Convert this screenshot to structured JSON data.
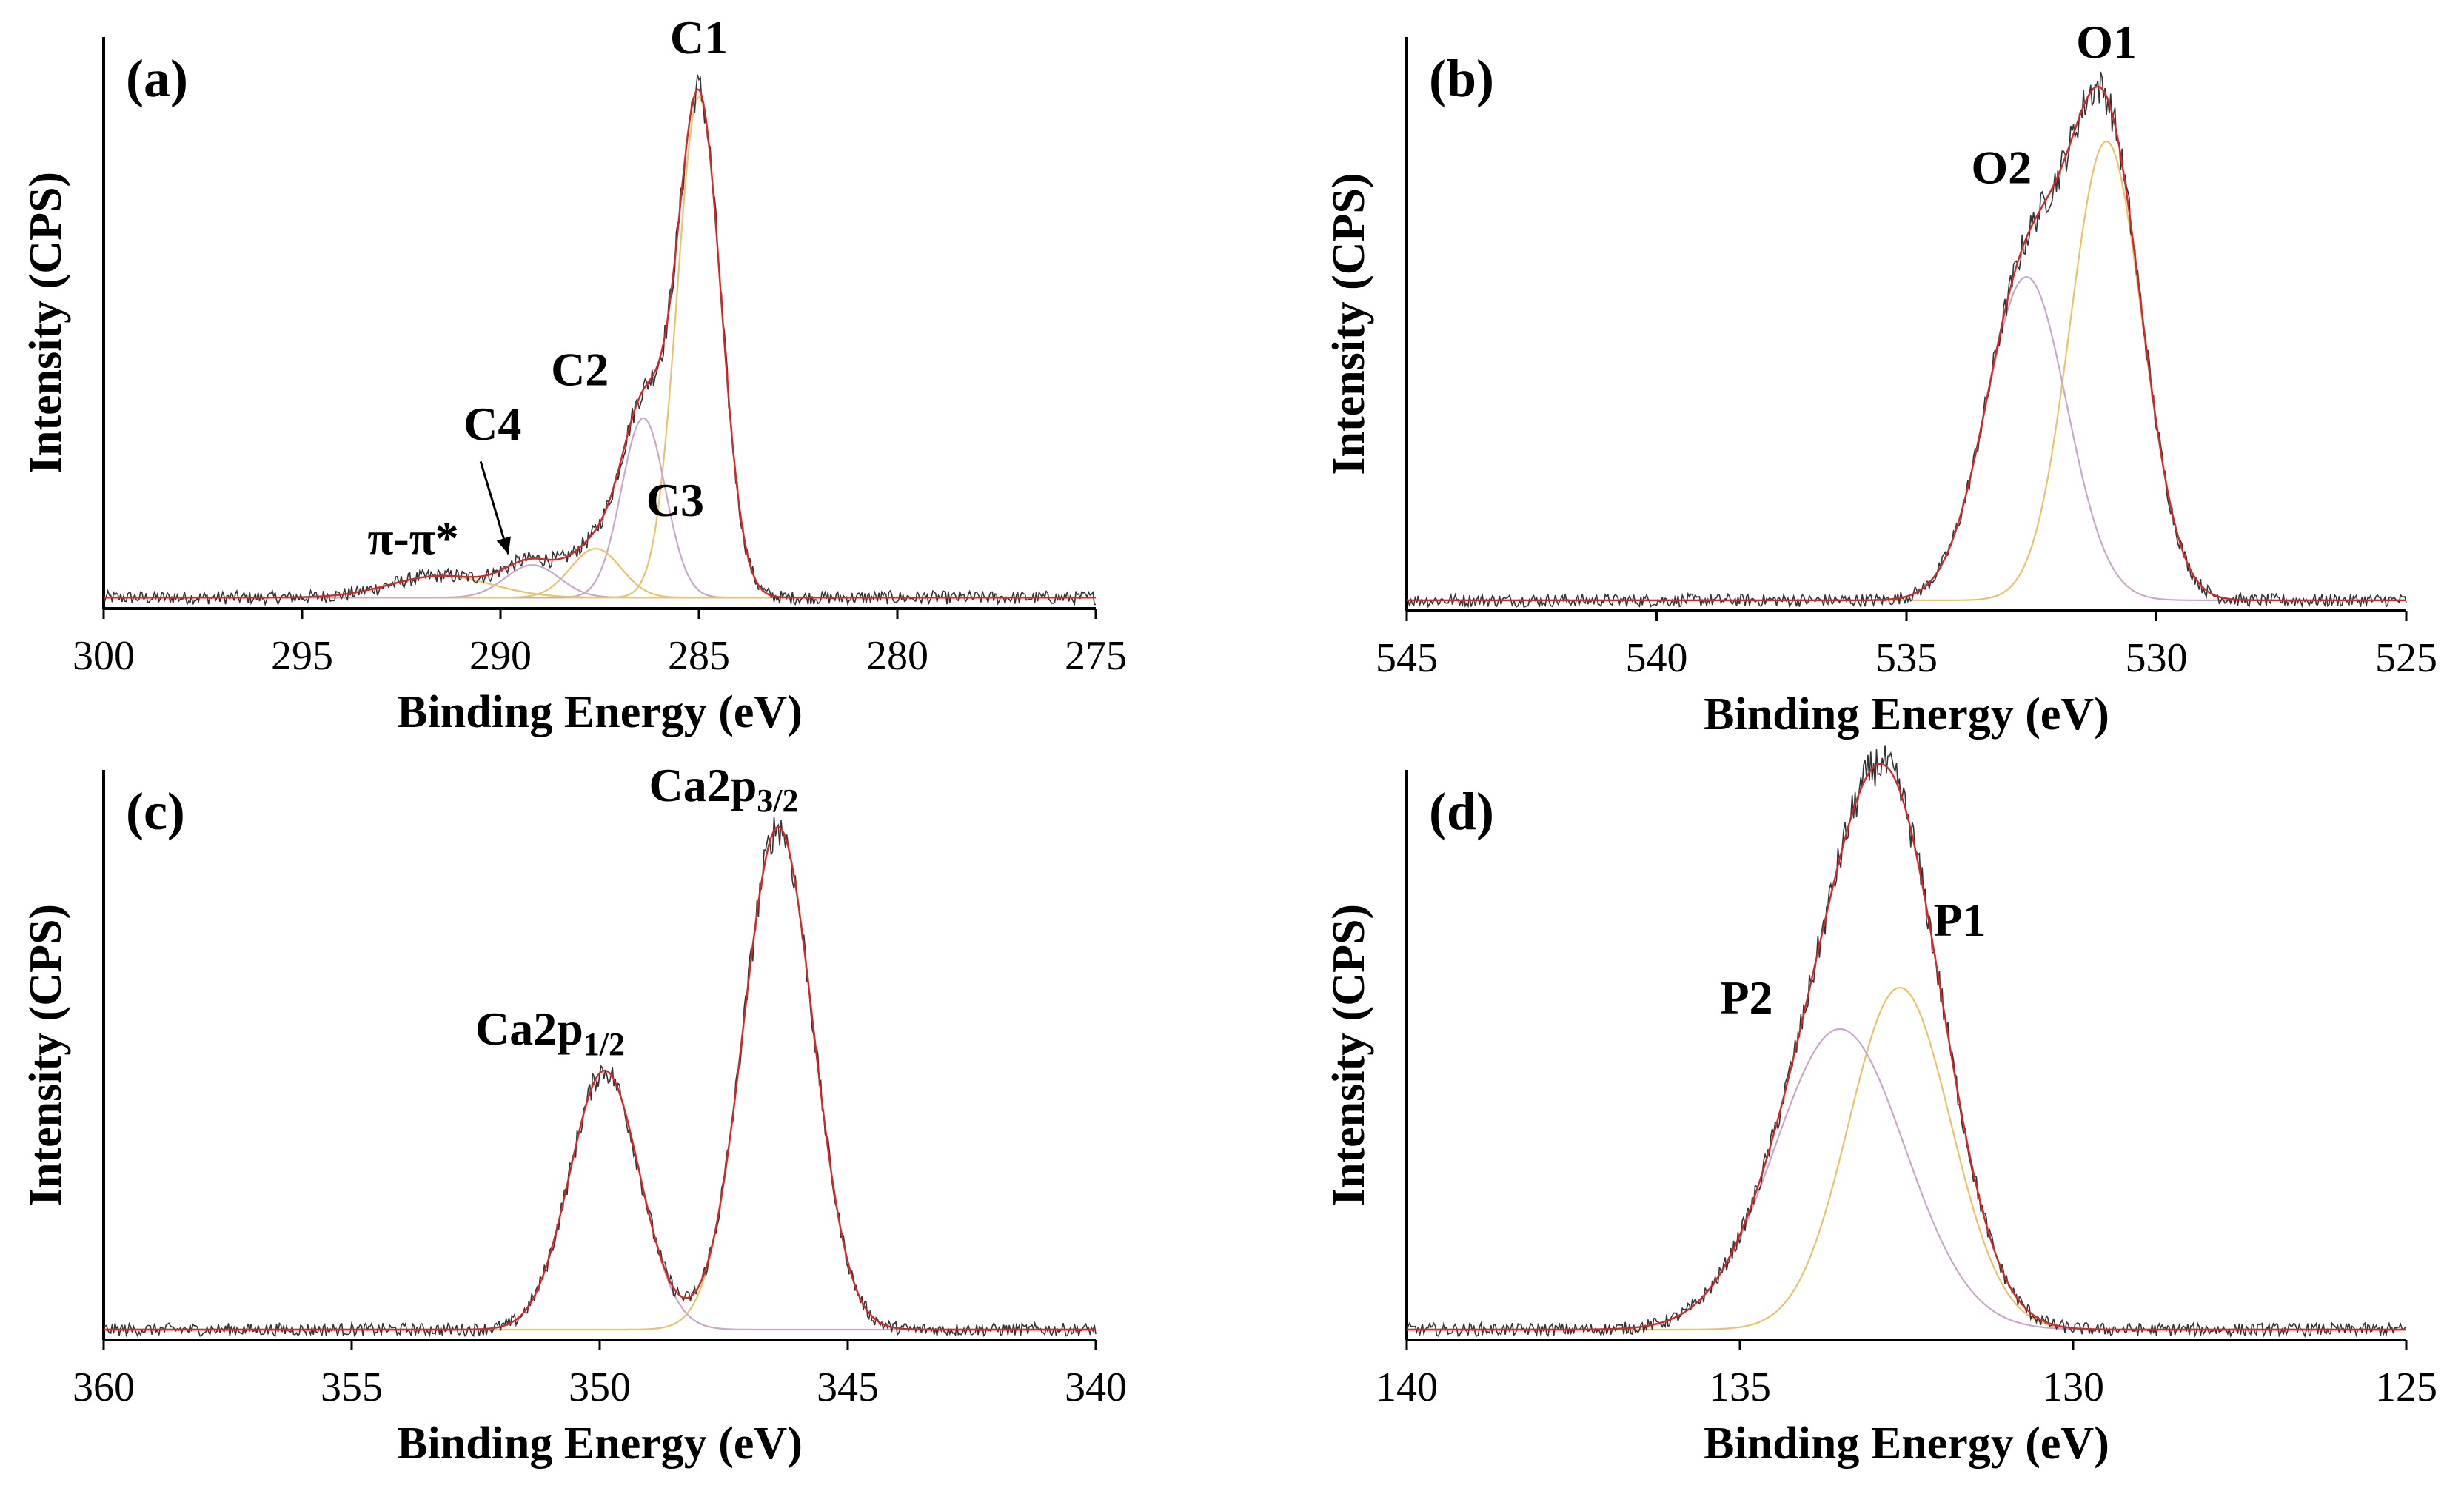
{
  "chart_data": [
    {
      "type": "line",
      "panel_label": "(a)",
      "title": "",
      "xlabel": "Binding Energy (eV)",
      "ylabel": "Intensity (CPS)",
      "xlim": [
        300,
        275
      ],
      "x_reversed": true,
      "xticks": [
        "300",
        "295",
        "290",
        "285",
        "280",
        "275"
      ],
      "ylim": [
        0,
        1.05
      ],
      "grid": false,
      "baseline": 0.02,
      "series": [
        {
          "name": "C1",
          "kind": "component",
          "center": 285.0,
          "height": 0.92,
          "fwhm": 1.3
        },
        {
          "name": "C2",
          "kind": "component",
          "center": 286.4,
          "height": 0.33,
          "fwhm": 1.3
        },
        {
          "name": "C3",
          "kind": "component",
          "center": 287.6,
          "height": 0.09,
          "fwhm": 1.5
        },
        {
          "name": "C4",
          "kind": "component",
          "center": 289.2,
          "height": 0.06,
          "fwhm": 1.6
        },
        {
          "name": "π-π*",
          "kind": "component",
          "center": 291.5,
          "height": 0.04,
          "fwhm": 3.0
        }
      ],
      "annotations": [
        {
          "text": "C1",
          "x": 285.0,
          "y": 1.02
        },
        {
          "text": "C2",
          "x": 288.0,
          "y": 0.41
        },
        {
          "text": "C3",
          "x": 286.8,
          "y": 0.17,
          "anchor_x_offset": -1.2
        },
        {
          "text": "C4",
          "x": 290.2,
          "y": 0.31
        },
        {
          "text": "π-π*",
          "x": 292.2,
          "y": 0.1
        }
      ],
      "arrow": {
        "label": "C4",
        "from": [
          290.5,
          0.27
        ],
        "to": [
          289.8,
          0.1
        ]
      }
    },
    {
      "type": "line",
      "panel_label": "(b)",
      "title": "",
      "xlabel": "Binding Energy (eV)",
      "ylabel": "Intensity (CPS)",
      "xlim": [
        545,
        525
      ],
      "x_reversed": true,
      "xticks": [
        "545",
        "540",
        "535",
        "530",
        "525"
      ],
      "ylim": [
        0,
        1.1
      ],
      "grid": false,
      "baseline": 0.02,
      "series": [
        {
          "name": "O1",
          "kind": "component",
          "center": 531.0,
          "height": 0.88,
          "fwhm": 1.7
        },
        {
          "name": "O2",
          "kind": "component",
          "center": 532.6,
          "height": 0.62,
          "fwhm": 1.9
        }
      ],
      "annotations": [
        {
          "text": "O1",
          "x": 531.0,
          "y": 1.06
        },
        {
          "text": "O2",
          "x": 533.1,
          "y": 0.82
        }
      ]
    },
    {
      "type": "line",
      "panel_label": "(c)",
      "title": "",
      "xlabel": "Binding Energy (eV)",
      "ylabel": "Intensity (CPS)",
      "xlim": [
        360,
        340
      ],
      "x_reversed": true,
      "xticks": [
        "360",
        "355",
        "350",
        "345",
        "340"
      ],
      "ylim": [
        0,
        1.1
      ],
      "grid": false,
      "baseline": 0.02,
      "series": [
        {
          "name": "Ca2p3/2",
          "kind": "component",
          "center": 346.4,
          "height": 0.97,
          "fwhm": 1.65
        },
        {
          "name": "Ca2p1/2",
          "kind": "component",
          "center": 349.9,
          "height": 0.5,
          "fwhm": 1.65
        }
      ],
      "annotations": [
        {
          "text": "Ca2p",
          "sub": "3/2",
          "x": 347.5,
          "y": 1.04
        },
        {
          "text": "Ca2p",
          "sub": "1/2",
          "x": 351.0,
          "y": 0.57
        }
      ]
    },
    {
      "type": "line",
      "panel_label": "(d)",
      "title": "",
      "xlabel": "Binding Energy (eV)",
      "ylabel": "Intensity (CPS)",
      "xlim": [
        140,
        125
      ],
      "x_reversed": true,
      "xticks": [
        "140",
        "135",
        "130",
        "125"
      ],
      "ylim": [
        0,
        1.1
      ],
      "grid": false,
      "baseline": 0.02,
      "series": [
        {
          "name": "P1",
          "kind": "component",
          "center": 132.6,
          "height": 0.66,
          "fwhm": 1.8
        },
        {
          "name": "P2",
          "kind": "component",
          "center": 133.5,
          "height": 0.58,
          "fwhm": 2.3
        }
      ],
      "annotations": [
        {
          "text": "P1",
          "x": 131.7,
          "y": 0.78
        },
        {
          "text": "P2",
          "x": 134.9,
          "y": 0.63
        }
      ]
    }
  ],
  "colors": {
    "raw": "#333333",
    "envelope": "#d62728",
    "component": "#e8c36a",
    "component_alt": "#c8a8c8",
    "axis": "#000000",
    "text": "#000000"
  }
}
